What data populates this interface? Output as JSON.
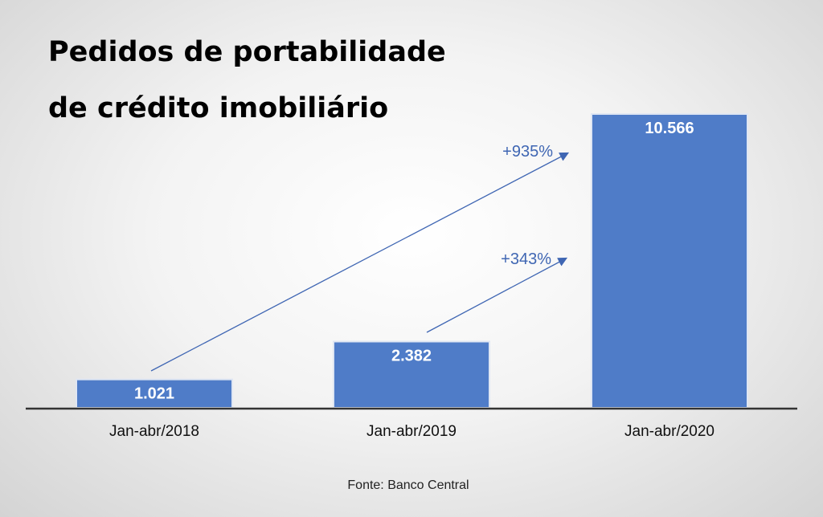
{
  "chart_data": {
    "type": "bar",
    "title": [
      "Pedidos de portabilidade",
      "de crédito imobiliário"
    ],
    "categories": [
      "Jan-abr/2018",
      "Jan-abr/2019",
      "Jan-abr/2020"
    ],
    "values": [
      1021,
      2382,
      10566
    ],
    "value_labels": [
      "1.021",
      "2.382",
      "10.566"
    ],
    "xlabel": "",
    "ylabel": "",
    "ylim": [
      0,
      10566
    ],
    "grid": false,
    "annotations": [
      {
        "text": "+935%",
        "from": "Jan-abr/2018",
        "to": "Jan-abr/2020"
      },
      {
        "text": "+343%",
        "from": "Jan-abr/2019",
        "to": "Jan-abr/2020"
      }
    ],
    "source": "Fonte: Banco Central",
    "colors": {
      "bar": "#4f7cc8",
      "annotation": "#3f66b3",
      "axis": "#333333"
    }
  }
}
